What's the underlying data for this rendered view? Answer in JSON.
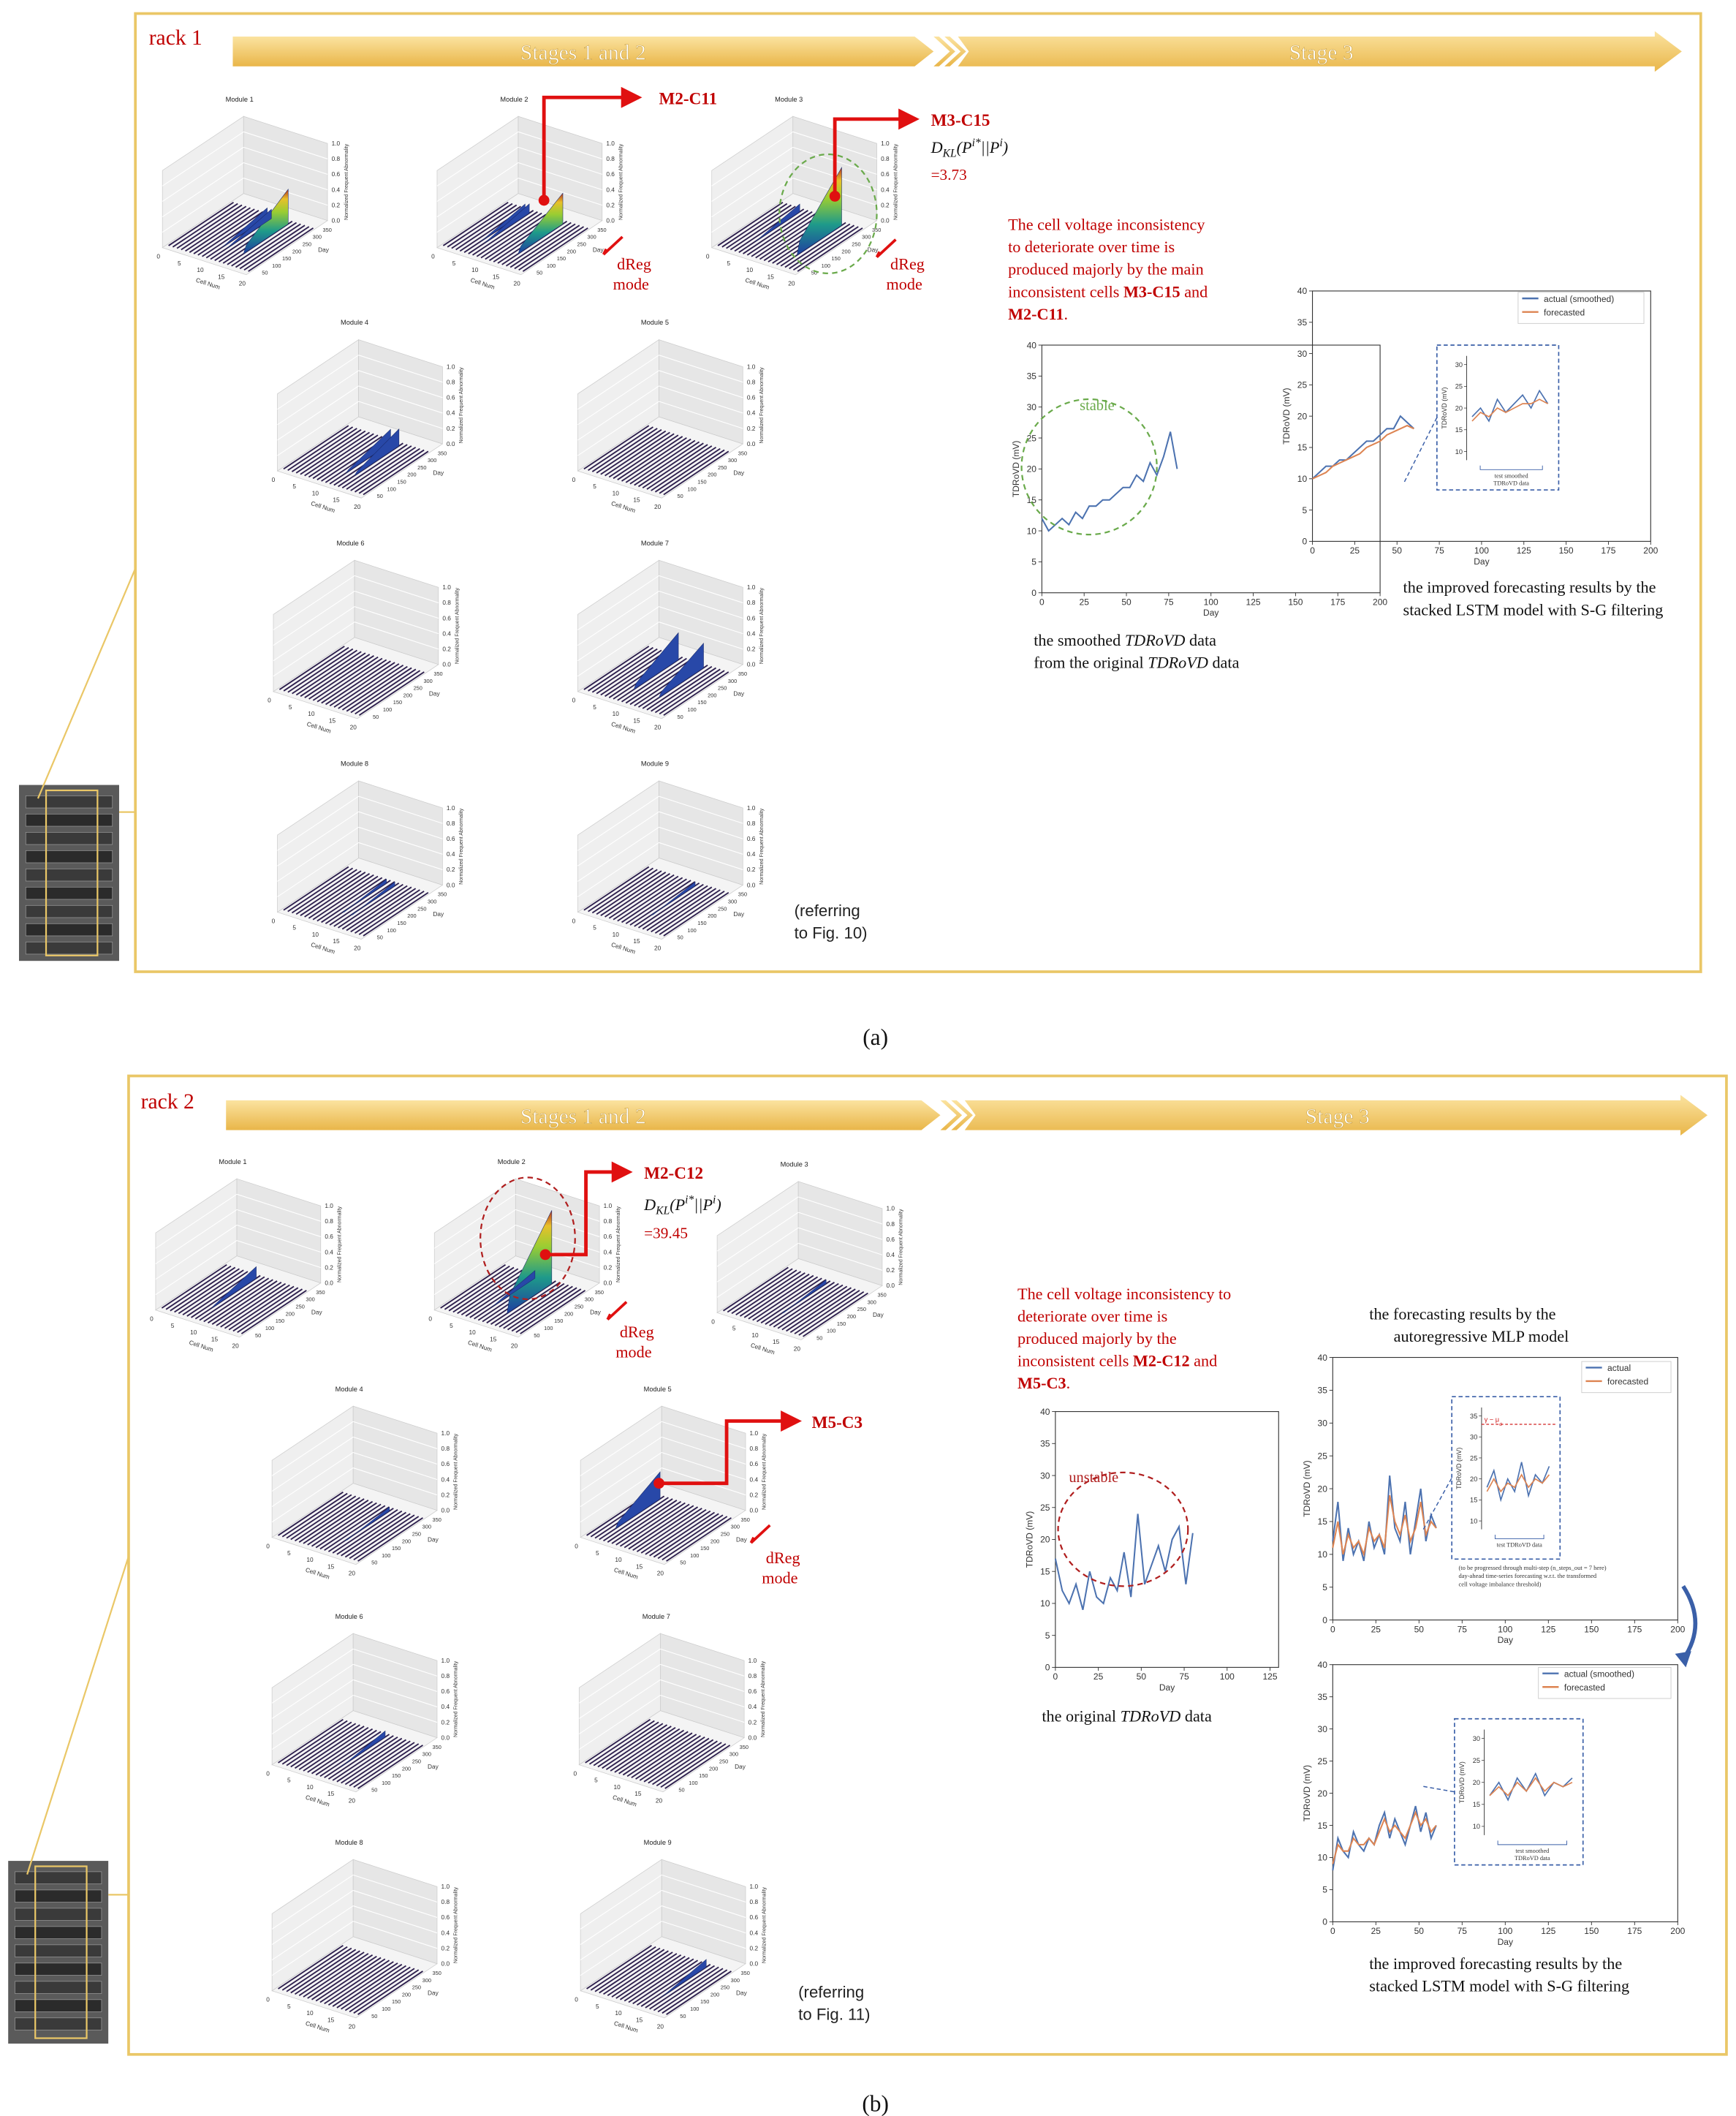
{
  "module_axes": {
    "cell_ticks": [
      0,
      5,
      10,
      15,
      20
    ],
    "cell_label": "Cell Num",
    "day_ticks": [
      50,
      100,
      150,
      200,
      250,
      300,
      350
    ],
    "day_label": "Day",
    "z_ticks": [
      {
        "value": 0,
        "label": "0.0"
      },
      {
        "value": 0.2,
        "label": "0.2"
      },
      {
        "value": 0.4,
        "label": "0.4"
      },
      {
        "value": 0.6,
        "label": "0.6"
      },
      {
        "value": 0.8,
        "label": "0.8"
      },
      {
        "value": 1,
        "label": "1.0"
      }
    ],
    "z_label": "Normalized Frequent Abnormality"
  },
  "kl_formula": [
    {
      "text": "D"
    },
    {
      "sub": "KL"
    },
    {
      "text": "(P"
    },
    {
      "sup": "i*"
    },
    {
      "text": "||P"
    },
    {
      "sup": "i"
    },
    {
      "text": ")"
    }
  ],
  "dreg": [
    "dReg",
    "mode"
  ],
  "panels": [
    {
      "rack": "rack 1",
      "stages": [
        "Stages 1 and 2",
        "Stage 3"
      ],
      "modules": [
        "Module 1",
        "Module 2",
        "Module 3",
        "Module 4",
        "Module 5",
        "Module 6",
        "Module 7",
        "Module 8",
        "Module 9"
      ],
      "callouts": [
        {
          "cell": "M2-C11"
        },
        {
          "cell": "M3-C15",
          "kl": "=3.73"
        }
      ],
      "summary": [
        [
          {
            "text": "The cell voltage inconsistency"
          }
        ],
        [
          {
            "text": "to deteriorate over time is"
          }
        ],
        [
          {
            "text": "produced majorly by the main"
          }
        ],
        [
          {
            "text": "inconsistent cells "
          },
          {
            "text": "M3-C15",
            "bold": true
          },
          {
            "text": " and"
          }
        ],
        [
          {
            "text": "M2-C11",
            "bold": true
          },
          {
            "text": "."
          }
        ]
      ],
      "referring": [
        "(referring",
        "to Fig. 10)"
      ],
      "charts": [
        {
          "type": "line",
          "x_label": "Day",
          "y_label": "TDRoVD (mV)",
          "xlim": [
            0,
            200
          ],
          "ylim": [
            0,
            40
          ],
          "xticks": [
            0,
            25,
            50,
            75,
            100,
            125,
            150,
            175,
            200
          ],
          "yticks": [
            0,
            5,
            10,
            15,
            20,
            25,
            30,
            35,
            40
          ],
          "annotation": "stable",
          "series": [
            {
              "color": "#4c72b0",
              "x": [
                0,
                4,
                8,
                12,
                16,
                20,
                24,
                28,
                32,
                36,
                40,
                44,
                48,
                52,
                56,
                60,
                64,
                68,
                72,
                76,
                80
              ],
              "values": [
                12,
                10,
                11,
                12,
                11,
                13,
                12,
                14,
                14,
                15,
                15,
                16,
                17,
                17,
                19,
                18,
                21,
                19,
                22,
                26,
                20
              ]
            }
          ],
          "caption": [
            [
              {
                "text": "the smoothed "
              },
              {
                "text": "TDRoVD",
                "italic": true
              },
              {
                "text": " data"
              }
            ],
            [
              {
                "text": "from the original "
              },
              {
                "text": "TDRoVD",
                "italic": true
              },
              {
                "text": " data"
              }
            ]
          ]
        },
        {
          "type": "line",
          "x_label": "Day",
          "y_label": "TDRoVD (mV)",
          "xlim": [
            0,
            200
          ],
          "ylim": [
            0,
            40
          ],
          "xticks": [
            0,
            25,
            50,
            75,
            100,
            125,
            150,
            175,
            200
          ],
          "yticks": [
            0,
            5,
            10,
            15,
            20,
            25,
            30,
            35,
            40
          ],
          "series": [
            {
              "name": "actual (smoothed)",
              "color": "#4c72b0",
              "x": [
                0,
                4,
                8,
                12,
                16,
                20,
                24,
                28,
                32,
                36,
                40,
                44,
                48,
                52,
                56,
                60
              ],
              "values": [
                10,
                11,
                12,
                12,
                13,
                13,
                14,
                15,
                16,
                16,
                17,
                18,
                18,
                20,
                19,
                18
              ]
            },
            {
              "name": "forecasted",
              "color": "#dd8452",
              "x": [
                0,
                4,
                8,
                12,
                16,
                20,
                24,
                28,
                32,
                36,
                40,
                44,
                48,
                52,
                56,
                60
              ],
              "values": [
                10,
                10.5,
                11,
                12,
                12.5,
                13,
                13.5,
                14,
                15,
                15.5,
                16,
                17,
                17.5,
                18,
                18.5,
                18
              ]
            }
          ],
          "inset": {
            "y_label": "TDRoVD (mV)",
            "ylim": [
              8,
              32
            ],
            "yticks": [
              10,
              15,
              20,
              25,
              30
            ],
            "note": [
              "test smoothed",
              "TDRoVD data"
            ],
            "series": [
              {
                "color": "#4c72b0",
                "values": [
                  18,
                  20,
                  17,
                  22,
                  19,
                  21,
                  23,
                  20,
                  24,
                  21
                ]
              },
              {
                "color": "#dd8452",
                "values": [
                  17,
                  19,
                  18,
                  20,
                  19,
                  20,
                  21,
                  21,
                  22,
                  21
                ]
              }
            ]
          },
          "caption": [
            [
              {
                "text": "the improved forecasting results by the"
              }
            ],
            [
              {
                "text": "stacked LSTM model with S-G filtering"
              }
            ]
          ]
        }
      ],
      "caption": "(a)"
    },
    {
      "rack": "rack 2",
      "stages": [
        "Stages 1 and 2",
        "Stage 3"
      ],
      "modules": [
        "Module 1",
        "Module 2",
        "Module 3",
        "Module 4",
        "Module 5",
        "Module 6",
        "Module 7",
        "Module 8",
        "Module 9"
      ],
      "callouts": [
        {
          "cell": "M2-C12",
          "kl": "=39.45"
        },
        {
          "cell": "M5-C3"
        }
      ],
      "summary": [
        [
          {
            "text": "The cell voltage inconsistency to"
          }
        ],
        [
          {
            "text": "deteriorate over time is"
          }
        ],
        [
          {
            "text": "produced majorly by the"
          }
        ],
        [
          {
            "text": "inconsistent cells "
          },
          {
            "text": "M2-C12",
            "bold": true
          },
          {
            "text": " and"
          }
        ],
        [
          {
            "text": "M5-C3",
            "bold": true
          },
          {
            "text": "."
          }
        ]
      ],
      "referring": [
        "(referring",
        "to Fig. 11)"
      ],
      "charts": [
        {
          "type": "line",
          "x_label": "Day",
          "y_label": "TDRoVD (mV)",
          "xlim": [
            0,
            130
          ],
          "ylim": [
            0,
            40
          ],
          "xticks": [
            0,
            25,
            50,
            75,
            100,
            125
          ],
          "yticks": [
            0,
            5,
            10,
            15,
            20,
            25,
            30,
            35,
            40
          ],
          "annotation": "unstable",
          "series": [
            {
              "color": "#4c72b0",
              "x": [
                0,
                4,
                8,
                12,
                16,
                20,
                24,
                28,
                32,
                36,
                40,
                44,
                48,
                52,
                56,
                60,
                64,
                68,
                72,
                76,
                80
              ],
              "values": [
                17,
                12,
                10,
                13,
                9,
                15,
                11,
                10,
                14,
                12,
                18,
                11,
                24,
                13,
                16,
                19,
                15,
                20,
                22,
                13,
                21
              ]
            }
          ],
          "caption": [
            [
              {
                "text": "the original "
              },
              {
                "text": "TDRoVD",
                "italic": true
              },
              {
                "text": " data"
              }
            ]
          ]
        },
        {
          "type": "line",
          "title": [
            [
              {
                "text": "the forecasting results by the"
              }
            ],
            [
              {
                "text": "autoregressive MLP model"
              }
            ]
          ],
          "x_label": "Day",
          "y_label": "TDRoVD (mV)",
          "xlim": [
            0,
            200
          ],
          "ylim": [
            0,
            40
          ],
          "xticks": [
            0,
            25,
            50,
            75,
            100,
            125,
            150,
            175,
            200
          ],
          "yticks": [
            0,
            5,
            10,
            15,
            20,
            25,
            30,
            35,
            40
          ],
          "series": [
            {
              "name": "actual",
              "color": "#4c72b0",
              "x": [
                0,
                3,
                6,
                9,
                12,
                15,
                18,
                21,
                24,
                27,
                30,
                33,
                36,
                39,
                42,
                45,
                48,
                51,
                54,
                57,
                60
              ],
              "values": [
                12,
                18,
                9,
                14,
                10,
                12,
                9,
                15,
                11,
                13,
                10,
                22,
                14,
                12,
                18,
                10,
                15,
                20,
                12,
                16,
                14
              ]
            },
            {
              "name": "forecasted",
              "color": "#dd8452",
              "x": [
                0,
                3,
                6,
                9,
                12,
                15,
                18,
                21,
                24,
                27,
                30,
                33,
                36,
                39,
                42,
                45,
                48,
                51,
                54,
                57,
                60
              ],
              "values": [
                11,
                15,
                10,
                13,
                11,
                12,
                10,
                14,
                12,
                13,
                11,
                19,
                15,
                13,
                16,
                12,
                14,
                18,
                13,
                15,
                14
              ]
            }
          ],
          "inset": {
            "y_label": "TDRoVD (mV)",
            "ylim": [
              8,
              37
            ],
            "yticks": [
              10,
              15,
              20,
              25,
              30,
              35
            ],
            "note": [
              "test TDRoVD data"
            ],
            "threshold": {
              "value": 33,
              "label": [
                {
                  "text": "γ − μ"
                },
                {
                  "sub": "d"
                }
              ]
            },
            "series": [
              {
                "color": "#4c72b0",
                "values": [
                  18,
                  22,
                  15,
                  20,
                  17,
                  24,
                  16,
                  21,
                  19,
                  23
                ]
              },
              {
                "color": "#dd8452",
                "values": [
                  17,
                  20,
                  17,
                  19,
                  18,
                  21,
                  18,
                  20,
                  19,
                  21
                ]
              }
            ]
          },
          "note": [
            "(to be progressed through multi-step (n_steps_out = 7 here)",
            "day-ahead time-series forecasting w.r.t. the transformed",
            "cell voltage imbalance threshold)"
          ]
        },
        {
          "type": "line",
          "x_label": "Day",
          "y_label": "TDRoVD (mV)",
          "xlim": [
            0,
            200
          ],
          "ylim": [
            0,
            40
          ],
          "xticks": [
            0,
            25,
            50,
            75,
            100,
            125,
            150,
            175,
            200
          ],
          "yticks": [
            0,
            5,
            10,
            15,
            20,
            25,
            30,
            35,
            40
          ],
          "series": [
            {
              "name": "actual (smoothed)",
              "color": "#4c72b0",
              "x": [
                0,
                3,
                6,
                9,
                12,
                15,
                18,
                21,
                24,
                27,
                30,
                33,
                36,
                39,
                42,
                45,
                48,
                51,
                54,
                57,
                60
              ],
              "values": [
                8,
                13,
                11,
                10,
                14,
                12,
                11,
                13,
                12,
                15,
                17,
                13,
                16,
                14,
                12,
                15,
                18,
                14,
                17,
                13,
                15
              ]
            },
            {
              "name": "forecasted",
              "color": "#dd8452",
              "x": [
                0,
                3,
                6,
                9,
                12,
                15,
                18,
                21,
                24,
                27,
                30,
                33,
                36,
                39,
                42,
                45,
                48,
                51,
                54,
                57,
                60
              ],
              "values": [
                9,
                12,
                11,
                11,
                13,
                12,
                12,
                13,
                12,
                14,
                16,
                14,
                15,
                14,
                13,
                15,
                17,
                15,
                16,
                14,
                15
              ]
            }
          ],
          "inset": {
            "y_label": "TDRoVD (mV)",
            "ylim": [
              8,
              32
            ],
            "yticks": [
              10,
              15,
              20,
              25,
              30
            ],
            "note": [
              "test smoothed",
              "TDRoVD data"
            ],
            "series": [
              {
                "color": "#4c72b0",
                "values": [
                  17,
                  20,
                  16,
                  21,
                  18,
                  22,
                  17,
                  20,
                  19,
                  21
                ]
              },
              {
                "color": "#dd8452",
                "values": [
                  17,
                  19,
                  17,
                  20,
                  18,
                  21,
                  18,
                  20,
                  19,
                  20
                ]
              }
            ]
          },
          "caption": [
            [
              {
                "text": "the improved forecasting results by the"
              }
            ],
            [
              {
                "text": "stacked LSTM model with S-G filtering"
              }
            ]
          ]
        }
      ],
      "caption": "(b)"
    }
  ]
}
